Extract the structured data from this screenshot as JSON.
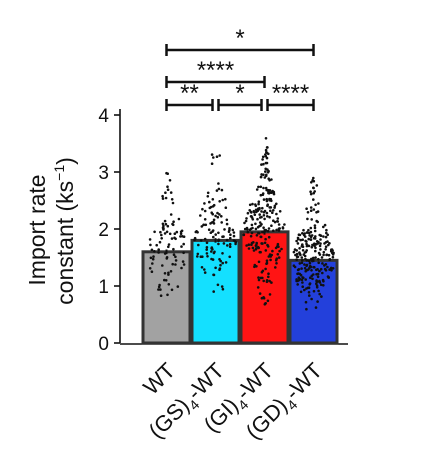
{
  "chart_data": {
    "type": "bar",
    "ylabel_line1": "Import rate",
    "ylabel_line2_pre": "constant (ks",
    "ylabel_line2_sup": "−1",
    "ylabel_line2_post": ")",
    "ylim": [
      0,
      4
    ],
    "yticks": [
      0,
      1,
      2,
      3,
      4
    ],
    "ytick_labels": [
      "0",
      "1",
      "2",
      "3",
      "4"
    ],
    "categories": [
      {
        "main": "WT",
        "sub": "",
        "post": ""
      },
      {
        "main": "(GS)",
        "sub": "4",
        "post": "-WT"
      },
      {
        "main": "(GI)",
        "sub": "4",
        "post": "-WT"
      },
      {
        "main": "(GD)",
        "sub": "4",
        "post": "-WT"
      }
    ],
    "values": [
      1.6,
      1.8,
      1.95,
      1.45
    ],
    "error": [
      0.04,
      0.04,
      0.05,
      0.03
    ],
    "point_spread": [
      {
        "n": 90,
        "min": 0.5,
        "max": 3.1
      },
      {
        "n": 120,
        "min": 0.7,
        "max": 3.4
      },
      {
        "n": 230,
        "min": 0.2,
        "max": 3.6
      },
      {
        "n": 240,
        "min": 0.5,
        "max": 2.95
      }
    ],
    "bar_colors": [
      "#9a9a9a",
      "#00ddff",
      "#ff0000",
      "#1030d8"
    ],
    "significance": [
      {
        "from": 0,
        "to": 1,
        "label": "**"
      },
      {
        "from": 1,
        "to": 2,
        "label": "*"
      },
      {
        "from": 2,
        "to": 3,
        "label": "****"
      },
      {
        "from": 0,
        "to": 2,
        "label": "****"
      },
      {
        "from": 0,
        "to": 3,
        "label": "*"
      }
    ]
  }
}
